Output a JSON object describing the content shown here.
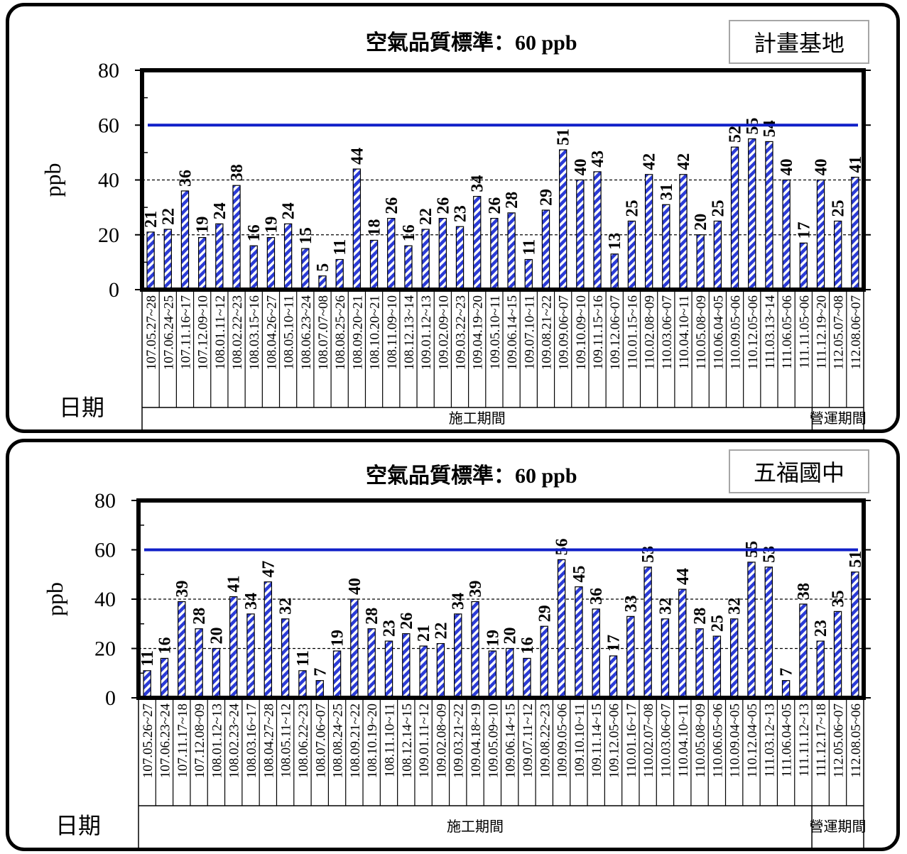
{
  "colors": {
    "bar_fill": "#2b3bd6",
    "bar_stripe": "#ffffff",
    "standard_line": "#1020c8",
    "grid": "#000000"
  },
  "chart_data": [
    {
      "type": "bar",
      "title": "空氣品質標準：60 ppb",
      "site": "計畫基地",
      "ylabel": "ppb",
      "xlabel": "日期",
      "ylim": [
        0,
        80
      ],
      "yticks": [
        0,
        20,
        40,
        60,
        80
      ],
      "grid": "dashed horizontal at 20 and 40",
      "standard": 60,
      "categories": [
        "107.05.27~28",
        "107.06.24~25",
        "107.11.16~17",
        "107.12.09~10",
        "108.01.11~12",
        "108.02.22~23",
        "108.03.15~16",
        "108.04.26~27",
        "108.05.10~11",
        "108.06.23~24",
        "108.07.07~08",
        "108.08.25~26",
        "108.09.20~21",
        "108.10.20~21",
        "108.11.09~10",
        "108.12.13~14",
        "109.01.12~13",
        "109.02.09~10",
        "109.03.22~23",
        "109.04.19~20",
        "109.05.10~11",
        "109.06.14~15",
        "109.07.10~11",
        "109.08.21~22",
        "109.09.06~07",
        "109.10.09~10",
        "109.11.15~16",
        "109.12.06~07",
        "110.01.15~16",
        "110.02.08~09",
        "110.03.06~07",
        "110.04.10~11",
        "110.05.08~09",
        "110.06.04~05",
        "110.09.05~06",
        "110.12.05~06",
        "111.03.13~14",
        "111.06.05~06",
        "111.11.05~06",
        "111.12.19~20",
        "112.05.07~08",
        "112.08.06~07"
      ],
      "values": [
        21,
        22,
        36,
        19,
        24,
        38,
        16,
        19,
        24,
        15,
        5,
        11,
        44,
        18,
        26,
        16,
        22,
        26,
        23,
        34,
        26,
        28,
        11,
        29,
        51,
        40,
        43,
        13,
        25,
        42,
        31,
        42,
        20,
        25,
        52,
        55,
        54,
        40,
        17,
        40,
        25,
        41
      ],
      "periods": [
        {
          "label": "施工期間",
          "count": 39
        },
        {
          "label": "營運期間",
          "count": 3
        }
      ]
    },
    {
      "type": "bar",
      "title": "空氣品質標準：60 ppb",
      "site": "五福國中",
      "ylabel": "ppb",
      "xlabel": "日期",
      "ylim": [
        0,
        80
      ],
      "yticks": [
        0,
        20,
        40,
        60,
        80
      ],
      "grid": "dashed horizontal at 20 and 40",
      "standard": 60,
      "categories": [
        "107.05.26~27",
        "107.06.23~24",
        "107.11.17~18",
        "107.12.08~09",
        "108.01.12~13",
        "108.02.23~24",
        "108.03.16~17",
        "108.04.27~28",
        "108.05.11~12",
        "108.06.22~23",
        "108.07.06~07",
        "108.08.24~25",
        "108.09.21~22",
        "108.10.19~20",
        "108.11.10~11",
        "108.12.14~15",
        "109.01.11~12",
        "109.02.08~09",
        "109.03.21~22",
        "109.04.18~19",
        "109.05.09~10",
        "109.06.14~15",
        "109.07.11~12",
        "109.08.22~23",
        "109.09.05~06",
        "109.10.10~11",
        "109.11.14~15",
        "109.12.05~06",
        "110.01.16~17",
        "110.02.07~08",
        "110.03.06~07",
        "110.04.10~11",
        "110.05.08~09",
        "110.06.05~06",
        "110.09.04~05",
        "110.12.04~05",
        "111.03.12~13",
        "111.06.04~05",
        "111.11.12~13",
        "111.12.17~18",
        "112.05.06~07",
        "112.08.05~06"
      ],
      "values": [
        11,
        16,
        39,
        28,
        20,
        41,
        34,
        47,
        32,
        11,
        7,
        19,
        40,
        28,
        23,
        26,
        21,
        22,
        34,
        39,
        19,
        20,
        16,
        29,
        56,
        45,
        36,
        17,
        33,
        53,
        32,
        44,
        28,
        25,
        32,
        55,
        53,
        7,
        38,
        23,
        35,
        51
      ],
      "periods": [
        {
          "label": "施工期間",
          "count": 39
        },
        {
          "label": "營運期間",
          "count": 3
        }
      ]
    }
  ]
}
